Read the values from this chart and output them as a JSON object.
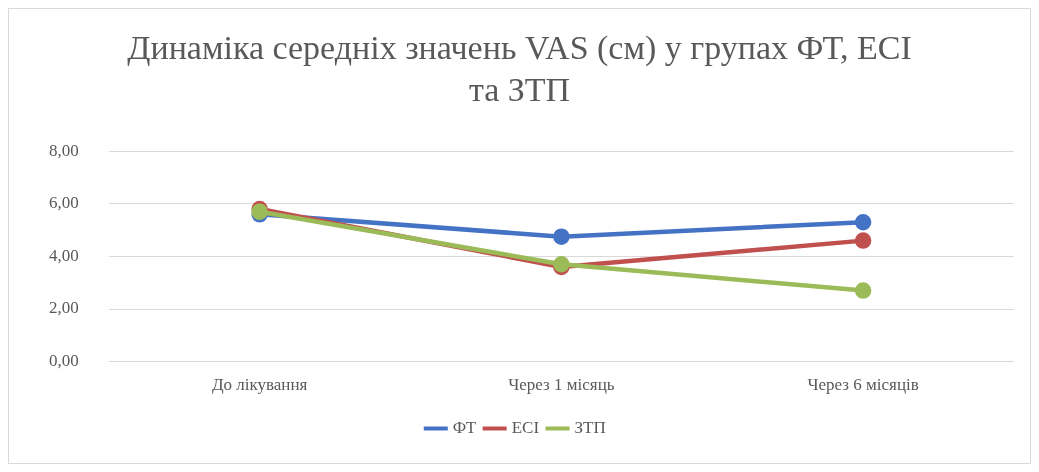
{
  "chart_data": {
    "type": "line",
    "title": "Динаміка середніх значень VAS (см) у групах ФТ, ЕСІ та ЗТП",
    "categories": [
      "До лікування",
      "Через 1 місяць",
      "Через 6 місяців"
    ],
    "series": [
      {
        "name": "ФТ",
        "color": "#4472c4",
        "values": [
          5.6,
          4.75,
          5.3
        ]
      },
      {
        "name": "ЕСІ",
        "color": "#c0504d",
        "values": [
          5.8,
          3.6,
          4.6
        ]
      },
      {
        "name": "ЗТП",
        "color": "#9bbb59",
        "values": [
          5.7,
          3.7,
          2.7
        ]
      }
    ],
    "ylim": [
      0,
      8
    ],
    "yticks": [
      {
        "value": 0,
        "label": "0,00"
      },
      {
        "value": 2,
        "label": "2,00"
      },
      {
        "value": 4,
        "label": "4,00"
      },
      {
        "value": 6,
        "label": "6,00"
      },
      {
        "value": 8,
        "label": "8,00"
      }
    ],
    "grid": "y",
    "legend": "bottom",
    "marker": "circle",
    "line_style": "solid"
  }
}
